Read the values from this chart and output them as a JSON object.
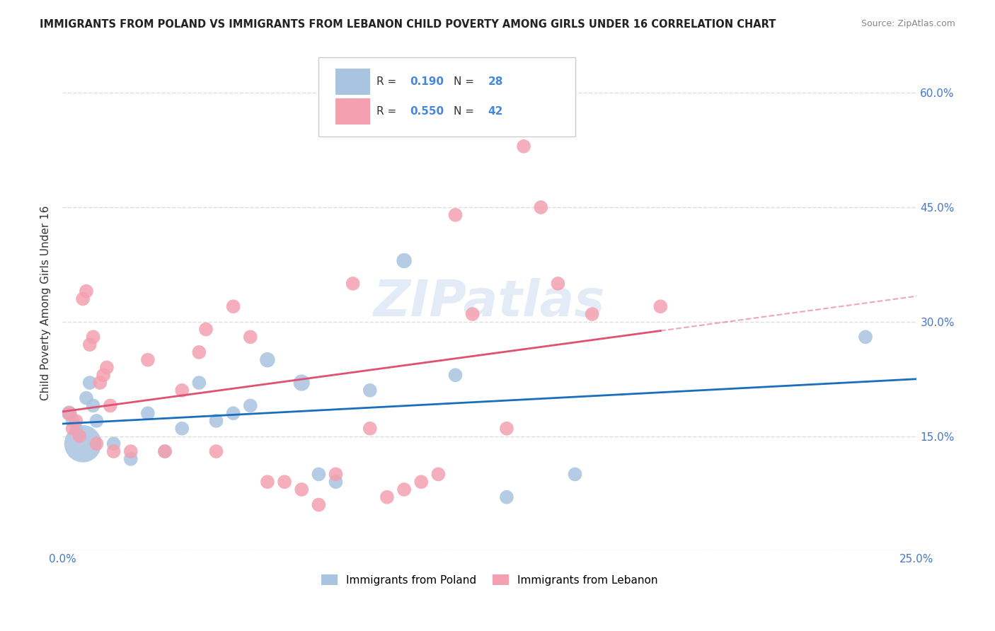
{
  "title": "IMMIGRANTS FROM POLAND VS IMMIGRANTS FROM LEBANON CHILD POVERTY AMONG GIRLS UNDER 16 CORRELATION CHART",
  "source": "Source: ZipAtlas.com",
  "xlabel": "",
  "ylabel": "Child Poverty Among Girls Under 16",
  "xlim": [
    0.0,
    0.25
  ],
  "ylim": [
    0.0,
    0.65
  ],
  "xticks": [
    0.0,
    0.05,
    0.1,
    0.15,
    0.2,
    0.25
  ],
  "xtick_labels": [
    "0.0%",
    "",
    "",
    "",
    "",
    "25.0%"
  ],
  "yticks": [
    0.0,
    0.15,
    0.3,
    0.45,
    0.6
  ],
  "ytick_labels": [
    "",
    "15.0%",
    "30.0%",
    "45.0%",
    "60.0%"
  ],
  "poland_R": 0.19,
  "poland_N": 28,
  "lebanon_R": 0.55,
  "lebanon_N": 42,
  "poland_color": "#a8c4e0",
  "lebanon_color": "#f4a0b0",
  "poland_line_color": "#1a6fbd",
  "lebanon_line_color": "#e05070",
  "poland_scatter": {
    "x": [
      0.002,
      0.003,
      0.004,
      0.005,
      0.006,
      0.007,
      0.008,
      0.009,
      0.01,
      0.015,
      0.02,
      0.025,
      0.03,
      0.035,
      0.04,
      0.045,
      0.05,
      0.055,
      0.06,
      0.07,
      0.075,
      0.08,
      0.09,
      0.1,
      0.115,
      0.13,
      0.15,
      0.235
    ],
    "y": [
      0.18,
      0.17,
      0.16,
      0.15,
      0.14,
      0.2,
      0.22,
      0.19,
      0.17,
      0.14,
      0.12,
      0.18,
      0.13,
      0.16,
      0.22,
      0.17,
      0.18,
      0.19,
      0.25,
      0.22,
      0.1,
      0.09,
      0.21,
      0.38,
      0.23,
      0.07,
      0.1,
      0.28
    ],
    "sizes": [
      30,
      25,
      20,
      20,
      180,
      25,
      25,
      25,
      25,
      25,
      25,
      25,
      25,
      25,
      25,
      25,
      25,
      25,
      30,
      35,
      25,
      25,
      25,
      30,
      25,
      25,
      25,
      25
    ]
  },
  "lebanon_scatter": {
    "x": [
      0.002,
      0.003,
      0.004,
      0.005,
      0.006,
      0.007,
      0.008,
      0.009,
      0.01,
      0.011,
      0.012,
      0.013,
      0.014,
      0.015,
      0.02,
      0.025,
      0.03,
      0.035,
      0.04,
      0.042,
      0.045,
      0.05,
      0.055,
      0.06,
      0.065,
      0.07,
      0.075,
      0.08,
      0.085,
      0.09,
      0.095,
      0.1,
      0.105,
      0.11,
      0.115,
      0.12,
      0.13,
      0.135,
      0.14,
      0.145,
      0.155,
      0.175
    ],
    "y": [
      0.18,
      0.16,
      0.17,
      0.15,
      0.33,
      0.34,
      0.27,
      0.28,
      0.14,
      0.22,
      0.23,
      0.24,
      0.19,
      0.13,
      0.13,
      0.25,
      0.13,
      0.21,
      0.26,
      0.29,
      0.13,
      0.32,
      0.28,
      0.09,
      0.09,
      0.08,
      0.06,
      0.1,
      0.35,
      0.16,
      0.07,
      0.08,
      0.09,
      0.1,
      0.44,
      0.31,
      0.16,
      0.53,
      0.45,
      0.35,
      0.31,
      0.32
    ],
    "sizes": [
      25,
      25,
      25,
      25,
      25,
      25,
      25,
      25,
      25,
      25,
      25,
      25,
      25,
      25,
      25,
      25,
      25,
      25,
      25,
      25,
      25,
      25,
      25,
      25,
      25,
      25,
      25,
      25,
      25,
      25,
      25,
      25,
      25,
      25,
      25,
      25,
      25,
      25,
      25,
      25,
      25,
      25
    ]
  },
  "watermark": "ZIPatlas",
  "background_color": "#ffffff",
  "grid_color": "#dddddd"
}
